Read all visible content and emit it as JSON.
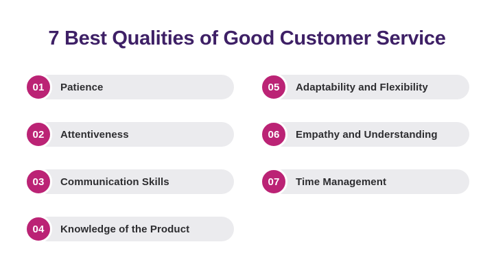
{
  "title": {
    "text": "7 Best Qualities of Good Customer Service"
  },
  "colors": {
    "page_bg": "#FFFFFF",
    "title_text": "#3E2066",
    "badge_bg": "#BB2375",
    "badge_text": "#FFFFFF",
    "pill_bg": "#EBEBEE",
    "label_text": "#2D2D30"
  },
  "items": [
    {
      "number": "01",
      "label": "Patience"
    },
    {
      "number": "02",
      "label": "Attentiveness"
    },
    {
      "number": "03",
      "label": "Communication Skills"
    },
    {
      "number": "04",
      "label": "Knowledge of the Product"
    },
    {
      "number": "05",
      "label": "Adaptability and Flexibility"
    },
    {
      "number": "06",
      "label": "Empathy and Understanding"
    },
    {
      "number": "07",
      "label": "Time Management"
    }
  ]
}
